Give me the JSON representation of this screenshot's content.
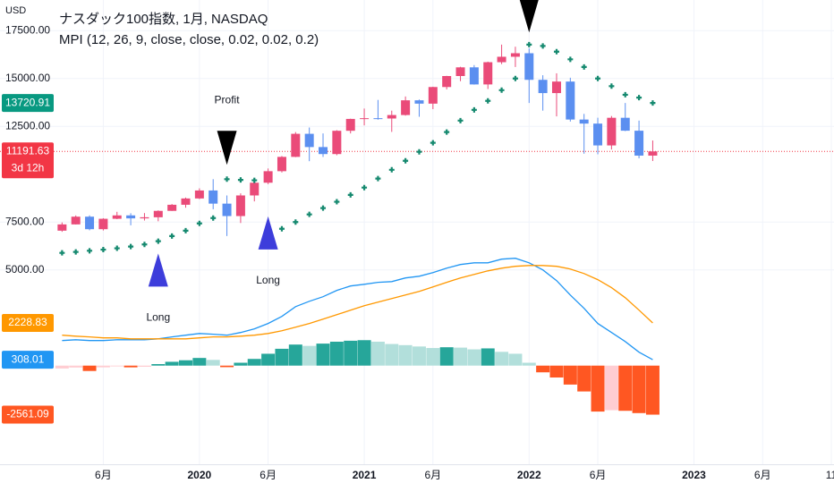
{
  "chart_data": {
    "type": "candlestick",
    "title": "ナスダック100指数, 1月, NASDAQ",
    "subtitle": "MPI (12, 26, 9, close, close, 0.02, 0.02, 0.2)",
    "currency": "USD",
    "countdown": "3d 12h",
    "x": [
      "2019-03",
      "2019-04",
      "2019-05",
      "2019-06",
      "2019-07",
      "2019-08",
      "2019-09",
      "2019-10",
      "2019-11",
      "2019-12",
      "2020-01",
      "2020-02",
      "2020-03",
      "2020-04",
      "2020-05",
      "2020-06",
      "2020-07",
      "2020-08",
      "2020-09",
      "2020-10",
      "2020-11",
      "2020-12",
      "2021-01",
      "2021-02",
      "2021-03",
      "2021-04",
      "2021-05",
      "2021-06",
      "2021-07",
      "2021-08",
      "2021-09",
      "2021-10",
      "2021-11",
      "2021-12",
      "2022-01",
      "2022-02",
      "2022-03",
      "2022-04",
      "2022-05",
      "2022-06",
      "2022-07",
      "2022-08",
      "2022-09",
      "2022-10"
    ],
    "ohlc": {
      "open": [
        7050,
        7378,
        7781,
        7127,
        7671,
        7848,
        7692,
        7750,
        8084,
        8403,
        8733,
        9150,
        8462,
        7813,
        8890,
        9555,
        10157,
        10905,
        12110,
        11418,
        11052,
        12268,
        12888,
        12925,
        12909,
        13091,
        13860,
        13686,
        14554,
        15128,
        15582,
        14689,
        15851,
        16135,
        16320,
        14930,
        14237,
        14839,
        12855,
        12643,
        11503,
        12947,
        12272,
        10971
      ],
      "high": [
        7480,
        7845,
        7850,
        7700,
        8035,
        7960,
        7970,
        8110,
        8440,
        8780,
        9260,
        9740,
        8890,
        9000,
        9610,
        10300,
        10950,
        12200,
        12440,
        12130,
        12300,
        12900,
        13430,
        13880,
        13320,
        14060,
        13900,
        14570,
        15140,
        15610,
        15700,
        15880,
        16770,
        16660,
        16570,
        15170,
        15270,
        15040,
        13150,
        12950,
        13040,
        13720,
        12800,
        11760
      ],
      "low": [
        6990,
        7370,
        7070,
        7060,
        7650,
        7330,
        7580,
        7540,
        8080,
        8250,
        8700,
        8170,
        6770,
        7450,
        8580,
        9480,
        10090,
        10890,
        10680,
        10900,
        10990,
        12130,
        12550,
        12850,
        12210,
        13060,
        13000,
        13400,
        14430,
        14860,
        14680,
        14450,
        15750,
        15600,
        13720,
        13320,
        13020,
        12750,
        11070,
        11040,
        11290,
        12250,
        10830,
        10690
      ],
      "close": [
        7378,
        7781,
        7127,
        7671,
        7848,
        7692,
        7750,
        8084,
        8403,
        8733,
        9150,
        8462,
        7813,
        8890,
        9555,
        10157,
        10905,
        12110,
        11418,
        11052,
        12268,
        12888,
        12925,
        12909,
        13091,
        13860,
        13686,
        14554,
        15128,
        15582,
        14689,
        15851,
        16135,
        16320,
        14930,
        14237,
        14839,
        12855,
        12643,
        11503,
        12947,
        12272,
        10971,
        11191.63
      ]
    },
    "up_color": "#ea4b79",
    "down_color": "#5b8ff0",
    "price_line_color": "#f23645",
    "sar": {
      "color": "#15896f",
      "badge_color": "#089981",
      "values": [
        5890,
        5940,
        6000,
        6060,
        6130,
        6220,
        6330,
        6500,
        6770,
        7050,
        7430,
        7710,
        9740,
        9700,
        9680,
        6770,
        7150,
        7500,
        7900,
        8230,
        8560,
        8920,
        9300,
        9770,
        10230,
        10700,
        11170,
        11640,
        12200,
        12800,
        13360,
        13830,
        14390,
        15000,
        16770,
        16700,
        16400,
        16000,
        15600,
        15000,
        14600,
        14150,
        14000,
        13720.91
      ]
    },
    "series": [
      {
        "color": "#2196f3",
        "values": [
          1310,
          1350,
          1310,
          1310,
          1350,
          1350,
          1350,
          1400,
          1500,
          1590,
          1680,
          1640,
          1590,
          1730,
          1920,
          2200,
          2570,
          3080,
          3360,
          3600,
          3930,
          4160,
          4250,
          4350,
          4390,
          4580,
          4670,
          4860,
          5090,
          5280,
          5370,
          5370,
          5560,
          5610,
          5370,
          5000,
          4440,
          3690,
          2990,
          2200,
          1730,
          1260,
          700,
          308.01
        ]
      },
      {
        "color": "#ff9800",
        "values": [
          1590,
          1540,
          1500,
          1450,
          1450,
          1400,
          1400,
          1400,
          1400,
          1400,
          1450,
          1500,
          1500,
          1540,
          1590,
          1680,
          1820,
          2010,
          2200,
          2430,
          2660,
          2900,
          3130,
          3320,
          3500,
          3690,
          3880,
          4110,
          4350,
          4580,
          4770,
          4950,
          5090,
          5190,
          5230,
          5230,
          5190,
          5050,
          4810,
          4490,
          4070,
          3550,
          2900,
          2228.83
        ]
      }
    ],
    "histogram": {
      "values": [
        -150,
        -100,
        -280,
        -90,
        -40,
        -90,
        -60,
        80,
        200,
        280,
        400,
        300,
        -80,
        150,
        350,
        620,
        880,
        1100,
        1030,
        1150,
        1250,
        1300,
        1330,
        1250,
        1130,
        1070,
        1000,
        920,
        960,
        940,
        850,
        900,
        720,
        620,
        150,
        -350,
        -620,
        -990,
        -1350,
        -2400,
        -2330,
        -2360,
        -2480,
        -2561.09
      ],
      "colors": {
        "pos_up": "#26a69a",
        "pos_down": "#b2dfdb",
        "neg_up": "#ffcdd2",
        "neg_down": "#ff5722"
      }
    },
    "signals": [
      {
        "x": "2019-10",
        "shape": "up",
        "color": "#3d3ddb",
        "label": "Long"
      },
      {
        "x": "2020-03",
        "shape": "down",
        "color": "#000000",
        "label": "Profit"
      },
      {
        "x": "2020-06",
        "shape": "up",
        "color": "#3d3ddb",
        "label": "Long"
      },
      {
        "x": "2022-01",
        "shape": "down",
        "color": "#000000"
      }
    ],
    "xlim": [
      "2019-02",
      "2023-11"
    ],
    "xticks": [
      {
        "value": "2019-06",
        "label": "6月"
      },
      {
        "value": "2020-01",
        "label": "2020"
      },
      {
        "value": "2020-06",
        "label": "6月"
      },
      {
        "value": "2021-01",
        "label": "2021"
      },
      {
        "value": "2021-06",
        "label": "6月"
      },
      {
        "value": "2022-01",
        "label": "2022"
      },
      {
        "value": "2022-06",
        "label": "6月"
      },
      {
        "value": "2023-01",
        "label": "2023"
      },
      {
        "value": "2023-06",
        "label": "6月"
      },
      {
        "value": "2023-11",
        "label": "11"
      }
    ],
    "ylim": [
      -5200,
      19100
    ],
    "yticks": [
      {
        "value": 5000,
        "label": "5000.00"
      },
      {
        "value": 7500,
        "label": "7500.00"
      },
      {
        "value": 12500,
        "label": "12500.00"
      },
      {
        "value": 15000,
        "label": "15000.00"
      },
      {
        "value": 17500,
        "label": "17500.00"
      }
    ],
    "grid": true
  }
}
